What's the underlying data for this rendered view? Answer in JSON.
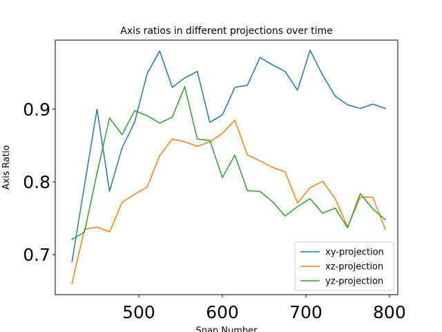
{
  "chart_data": {
    "type": "line",
    "title": "Axis ratios in different projections over time",
    "xlabel": "Snap Number",
    "ylabel": "Axis Ratio",
    "xlim": [
      400,
      810
    ],
    "ylim": [
      0.645,
      0.995
    ],
    "xticks": [
      500,
      600,
      700,
      800
    ],
    "yticks": [
      0.7,
      0.8,
      0.9
    ],
    "xtick_labels": [
      "500",
      "600",
      "700",
      "800"
    ],
    "ytick_labels": [
      "0.7",
      "0.8",
      "0.9"
    ],
    "grid": false,
    "legend_position": "lower-right",
    "x": [
      420,
      435,
      450,
      465,
      480,
      495,
      510,
      525,
      540,
      555,
      570,
      585,
      600,
      615,
      630,
      645,
      660,
      675,
      690,
      705,
      720,
      735,
      750,
      765,
      780,
      795
    ],
    "series": [
      {
        "name": "xy-projection",
        "color": "#1f77b4",
        "values": [
          0.69,
          0.795,
          0.9,
          0.787,
          0.847,
          0.882,
          0.949,
          0.98,
          0.93,
          0.943,
          0.952,
          0.882,
          0.892,
          0.93,
          0.933,
          0.971,
          0.961,
          0.952,
          0.926,
          0.981,
          0.947,
          0.918,
          0.906,
          0.901,
          0.907,
          0.901
        ]
      },
      {
        "name": "xz-projection",
        "color": "#ff7f0e",
        "values": [
          0.66,
          0.735,
          0.738,
          0.731,
          0.772,
          0.783,
          0.793,
          0.836,
          0.859,
          0.855,
          0.849,
          0.855,
          0.867,
          0.885,
          0.837,
          0.829,
          0.82,
          0.814,
          0.771,
          0.792,
          0.801,
          0.777,
          0.738,
          0.779,
          0.779,
          0.735
        ]
      },
      {
        "name": "yz-projection",
        "color": "#2ca02c",
        "values": [
          0.721,
          0.731,
          0.812,
          0.888,
          0.865,
          0.898,
          0.891,
          0.881,
          0.889,
          0.931,
          0.859,
          0.857,
          0.806,
          0.837,
          0.788,
          0.787,
          0.773,
          0.753,
          0.766,
          0.777,
          0.757,
          0.764,
          0.737,
          0.784,
          0.763,
          0.748
        ]
      }
    ]
  }
}
